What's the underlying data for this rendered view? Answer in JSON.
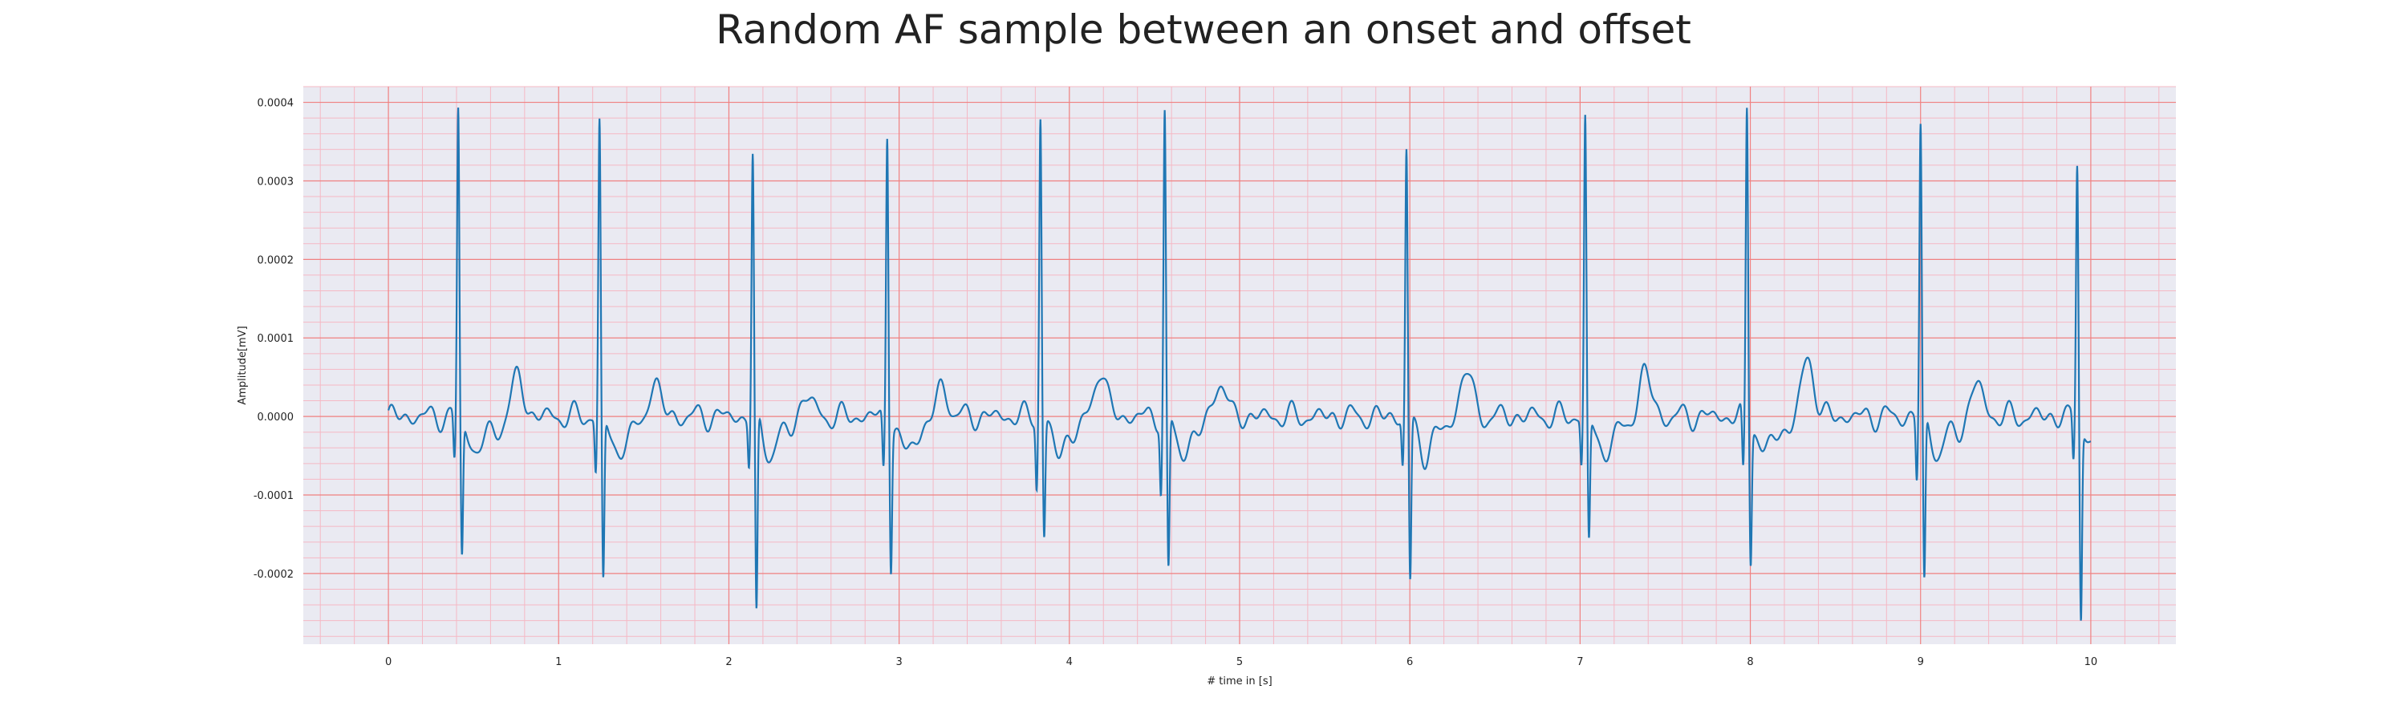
{
  "chart_data": {
    "type": "line",
    "title": "Random AF sample between an onset and offset",
    "xlabel": "# time in [s]",
    "ylabel": "Amplitude[mV]",
    "xlim": [
      -0.5,
      10.5
    ],
    "ylim": [
      -0.00029,
      0.00042
    ],
    "xticks": [
      0,
      1,
      2,
      3,
      4,
      5,
      6,
      7,
      8,
      9,
      10
    ],
    "xtick_labels": [
      "0",
      "1",
      "2",
      "3",
      "4",
      "5",
      "6",
      "7",
      "8",
      "9",
      "10"
    ],
    "yticks": [
      -0.0002,
      -0.0001,
      0,
      0.0001,
      0.0002,
      0.0003,
      0.0004
    ],
    "ytick_labels": [
      "-0.0002",
      "-0.0001",
      "0.0000",
      "0.0001",
      "0.0002",
      "0.0003",
      "0.0004"
    ],
    "grid": {
      "major": true,
      "minor": true,
      "major_color": "#f08080",
      "minor_color": "#f5b8c4"
    },
    "background_color": "#eaeaf2",
    "line_color": "#1f77b4",
    "series": [
      {
        "beats": [
          {
            "t": 0.41,
            "r": 0.00039,
            "s": -0.000175,
            "q": -6e-05
          },
          {
            "t": 1.24,
            "r": 0.000375,
            "s": -0.00021,
            "q": -7e-05
          },
          {
            "t": 2.14,
            "r": 0.00033,
            "s": -0.00026,
            "q": -6e-05
          },
          {
            "t": 2.93,
            "r": 0.000365,
            "s": -0.00018,
            "q": -7e-05
          },
          {
            "t": 3.83,
            "r": 0.000385,
            "s": -0.00015,
            "q": -8.5e-05
          },
          {
            "t": 4.56,
            "r": 0.000385,
            "s": -0.0002,
            "q": -9e-05
          },
          {
            "t": 5.98,
            "r": 0.00034,
            "s": -0.00021,
            "q": -6e-05
          },
          {
            "t": 7.03,
            "r": 0.00038,
            "s": -0.000158,
            "q": -6e-05
          },
          {
            "t": 7.98,
            "r": 0.000395,
            "s": -0.000175,
            "q": -8e-05
          },
          {
            "t": 9.0,
            "r": 0.00037,
            "s": -0.000215,
            "q": -8e-05
          },
          {
            "t": 9.92,
            "r": 0.000322,
            "s": -0.000248,
            "q": -6e-05
          }
        ],
        "t_waves": [
          {
            "t": 0.76,
            "a": 5e-05
          },
          {
            "t": 1.56,
            "a": 4.5e-05
          },
          {
            "t": 2.45,
            "a": 3e-05
          },
          {
            "t": 3.25,
            "a": 4e-05
          },
          {
            "t": 4.18,
            "a": 6.2e-05
          },
          {
            "t": 4.88,
            "a": 4.8e-05
          },
          {
            "t": 6.33,
            "a": 6e-05
          },
          {
            "t": 7.38,
            "a": 5.8e-05
          },
          {
            "t": 8.34,
            "a": 7.5e-05
          },
          {
            "t": 9.33,
            "a": 4.2e-05
          }
        ],
        "x_start": 0,
        "x_end": 10
      }
    ]
  }
}
